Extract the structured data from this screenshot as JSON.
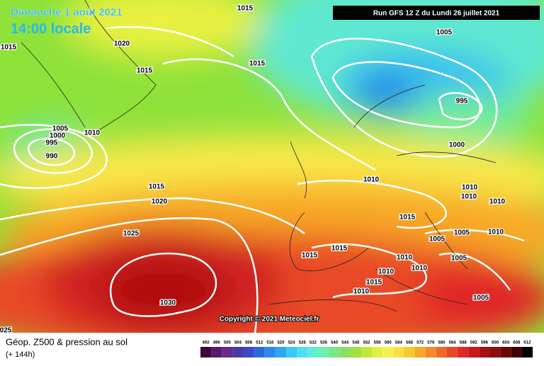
{
  "header": {
    "date": "Dimanche 1 août 2021",
    "time": "14:00 locale",
    "run": "Run GFS 12 Z du Lundi 26 juillet 2021"
  },
  "isobar_labels": [
    "1015",
    "1015",
    "1020",
    "1015",
    "1015",
    "1005",
    "995",
    "1000",
    "1005",
    "1000",
    "995",
    "990",
    "1010",
    "1010",
    "1015",
    "1020",
    "1010",
    "1010",
    "1010",
    "1015",
    "1025",
    "1005",
    "1010",
    "1005",
    "1015",
    "1015",
    "1010",
    "1005",
    "1010",
    "1010",
    "1015",
    "1010",
    "1030",
    "1005",
    "025"
  ],
  "copyright": "Copyright © 2021 Meteociel.fr",
  "footer": {
    "title": "Géop. Z500 & pression au sol",
    "subtitle": "(+ 144h)"
  },
  "legend": {
    "labels": [
      "492",
      "496",
      "500",
      "504",
      "508",
      "512",
      "516",
      "520",
      "524",
      "528",
      "532",
      "536",
      "540",
      "544",
      "548",
      "552",
      "556",
      "560",
      "564",
      "568",
      "572",
      "576",
      "580",
      "584",
      "588",
      "592",
      "596",
      "600",
      "604",
      "608",
      "612"
    ],
    "colors": [
      "#3a0a3a",
      "#5a1a6a",
      "#6a2a8a",
      "#4a3aa8",
      "#3a4ac8",
      "#2a6ad8",
      "#2a8ae8",
      "#2aa8f0",
      "#3ac8f8",
      "#4ae0f0",
      "#5af0d8",
      "#6af0b0",
      "#7ae888",
      "#8ae060",
      "#a0e040",
      "#c0e838",
      "#e0f040",
      "#f8f050",
      "#f8e040",
      "#f8c830",
      "#f8a828",
      "#f88828",
      "#f06828",
      "#e84828",
      "#e02828",
      "#c81818",
      "#a81010",
      "#881010",
      "#680808",
      "#400404",
      "#000000"
    ]
  }
}
